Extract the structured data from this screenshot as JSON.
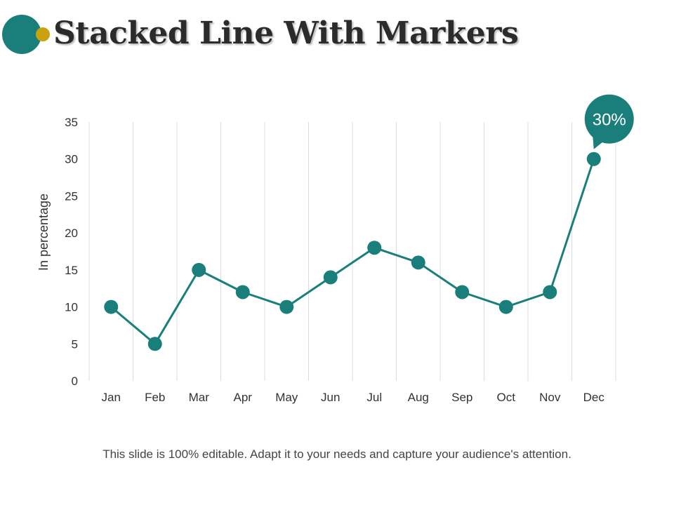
{
  "slide": {
    "title": "Stacked Line With Markers",
    "footer": "This slide is 100% editable. Adapt it to your needs and capture your audience's attention."
  },
  "colors": {
    "accent": "#1a7f7b",
    "accent_secondary": "#c9a20e",
    "gridline": "#dcdcdc",
    "axis_text": "#333333"
  },
  "chart_data": {
    "type": "line",
    "title": "",
    "xlabel": "",
    "ylabel": "In percentage",
    "categories": [
      "Jan",
      "Feb",
      "Mar",
      "Apr",
      "May",
      "Jun",
      "Jul",
      "Aug",
      "Sep",
      "Oct",
      "Nov",
      "Dec"
    ],
    "series": [
      {
        "name": "Series 1",
        "values": [
          10,
          5,
          15,
          12,
          10,
          14,
          18,
          16,
          12,
          10,
          12,
          30
        ]
      }
    ],
    "ylim": [
      0,
      35
    ],
    "yticks": [
      0,
      5,
      10,
      15,
      20,
      25,
      30,
      35
    ],
    "grid": "vertical",
    "markers": true,
    "callout": {
      "category": "Dec",
      "label": "30%"
    }
  }
}
